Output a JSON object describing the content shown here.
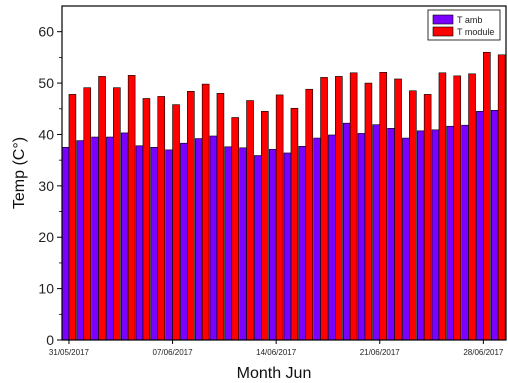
{
  "chart_data": {
    "type": "bar",
    "xlabel": "Month Jun",
    "ylabel": "Temp (C°)",
    "ylim": [
      0,
      65
    ],
    "y_ticks": [
      0,
      10,
      20,
      30,
      40,
      50,
      60
    ],
    "x_tick_labels": [
      {
        "index": 0,
        "label": "31/05/2017"
      },
      {
        "index": 7,
        "label": "07/06/2017"
      },
      {
        "index": 14,
        "label": "14/06/2017"
      },
      {
        "index": 21,
        "label": "21/06/2017"
      },
      {
        "index": 28,
        "label": "28/06/2017"
      }
    ],
    "legend_position": "top-right",
    "grid": false,
    "series": [
      {
        "name": "T amb",
        "color": "#7a00ff",
        "values": [
          37.5,
          38.8,
          39.5,
          39.5,
          40.3,
          37.8,
          37.5,
          37.0,
          38.3,
          39.2,
          39.7,
          37.6,
          37.4,
          35.9,
          37.1,
          36.4,
          37.7,
          39.3,
          39.9,
          42.2,
          40.2,
          41.9,
          41.2,
          39.3,
          40.7,
          40.9,
          41.6,
          41.8,
          44.5,
          44.7
        ]
      },
      {
        "name": "T module",
        "color": "#ff0000",
        "values": [
          47.8,
          49.1,
          51.3,
          49.1,
          51.5,
          47.0,
          47.4,
          45.8,
          48.4,
          49.8,
          48.0,
          43.3,
          46.6,
          44.5,
          47.7,
          45.1,
          48.8,
          51.1,
          51.3,
          52.0,
          50.0,
          52.1,
          50.8,
          48.5,
          47.8,
          52.0,
          51.4,
          51.8,
          56.0,
          55.5
        ]
      }
    ]
  }
}
